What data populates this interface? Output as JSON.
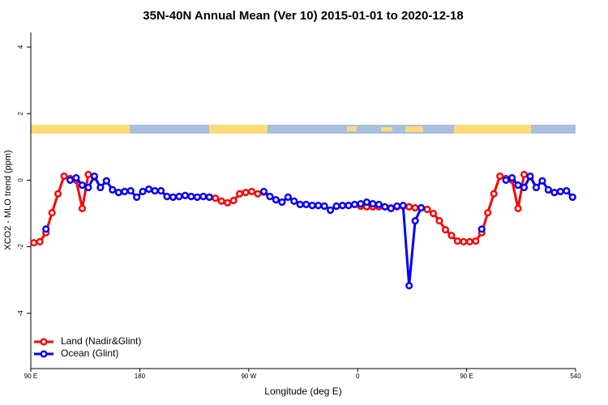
{
  "chart_data": {
    "type": "line",
    "title": "35N-40N Annual Mean (Ver 10)   2015-01-01 to 2020-12-18",
    "xlabel": "Longitude (deg E)",
    "ylabel": "XCO2 - MLO trend (ppm)",
    "x": [
      92.5,
      97.5,
      102.5,
      107.5,
      112.5,
      117.5,
      122.5,
      127.5,
      132.5,
      137.5,
      142.5,
      147.5,
      152.5,
      157.5,
      162.5,
      167.5,
      172.5,
      177.5,
      182.5,
      187.5,
      192.5,
      197.5,
      202.5,
      207.5,
      212.5,
      217.5,
      222.5,
      227.5,
      232.5,
      237.5,
      242.5,
      247.5,
      252.5,
      257.5,
      262.5,
      267.5,
      272.5,
      277.5,
      282.5,
      287.5,
      292.5,
      297.5,
      302.5,
      307.5,
      312.5,
      317.5,
      322.5,
      327.5,
      332.5,
      337.5,
      342.5,
      347.5,
      352.5,
      357.5,
      362.5,
      367.5,
      372.5,
      377.5,
      382.5,
      387.5,
      392.5,
      397.5,
      402.5,
      407.5,
      412.5,
      417.5,
      422.5,
      427.5,
      432.5,
      437.5,
      442.5,
      447.5,
      452.5,
      457.5,
      462.5,
      467.5,
      472.5,
      477.5,
      482.5,
      487.5,
      492.5,
      497.5,
      502.5,
      507.5,
      512.5,
      517.5,
      522.5,
      527.5,
      532.5,
      537.5
    ],
    "series": [
      {
        "name": "Land (Nadir&Glint)",
        "color": "#ff0000",
        "values": [
          -1.88,
          -1.85,
          -1.58,
          -0.98,
          -0.41,
          0.12,
          0.05,
          0.0,
          -0.85,
          0.17,
          0.1,
          -0.22,
          -0.02,
          -0.29,
          -0.37,
          -0.34,
          -0.32,
          -0.51,
          -0.34,
          -0.27,
          -0.32,
          -0.32,
          -0.49,
          -0.51,
          -0.49,
          -0.46,
          -0.49,
          -0.51,
          -0.49,
          -0.51,
          -0.54,
          -0.63,
          -0.68,
          -0.61,
          -0.41,
          -0.37,
          -0.34,
          -0.41,
          -0.36,
          -0.49,
          -0.59,
          -0.66,
          -0.51,
          -0.63,
          -0.73,
          -0.73,
          -0.76,
          -0.76,
          -0.78,
          -0.9,
          -0.78,
          -0.76,
          -0.76,
          -0.73,
          -0.78,
          -0.8,
          -0.8,
          -0.8,
          -0.8,
          -0.83,
          -0.8,
          -0.78,
          -0.8,
          -0.83,
          -0.83,
          -0.88,
          -1.0,
          -1.22,
          -1.49,
          -1.66,
          -1.83,
          -1.85,
          -1.85,
          -1.83,
          -1.58,
          -0.98,
          -0.41,
          0.12,
          0.05,
          0.0,
          -0.85,
          0.17,
          0.1,
          -0.22,
          -0.02,
          -0.29,
          -0.37,
          -0.34,
          -0.32,
          -0.51
        ]
      },
      {
        "name": "Ocean (Glint)",
        "color": "#0000ff",
        "values": [
          null,
          null,
          -1.47,
          null,
          null,
          null,
          0.0,
          0.07,
          -0.15,
          -0.22,
          0.12,
          -0.22,
          -0.02,
          -0.29,
          -0.37,
          -0.34,
          -0.32,
          -0.51,
          -0.34,
          -0.27,
          -0.32,
          -0.32,
          -0.49,
          -0.51,
          -0.49,
          -0.46,
          -0.49,
          -0.51,
          -0.49,
          -0.51,
          null,
          null,
          null,
          null,
          null,
          null,
          null,
          null,
          -0.34,
          -0.49,
          -0.59,
          -0.66,
          -0.51,
          -0.63,
          -0.73,
          -0.73,
          -0.76,
          -0.76,
          -0.78,
          -0.9,
          -0.78,
          -0.76,
          -0.76,
          -0.73,
          -0.71,
          -0.66,
          -0.71,
          -0.73,
          -0.8,
          -0.85,
          -0.78,
          -0.76,
          -3.17,
          -1.22,
          -0.83,
          null,
          null,
          null,
          null,
          null,
          null,
          null,
          null,
          null,
          -1.47,
          null,
          null,
          null,
          0.0,
          0.07,
          -0.15,
          -0.22,
          0.12,
          -0.22,
          -0.02,
          -0.29,
          -0.37,
          -0.34,
          -0.32,
          -0.51
        ]
      }
    ],
    "xlim": [
      90,
      540
    ],
    "ylim": [
      -5.66,
      4.44
    ],
    "xticks": [
      {
        "value": 90,
        "label": "90 E"
      },
      180,
      {
        "value": 270,
        "label": "90 W"
      },
      {
        "value": 360,
        "label": "0"
      },
      {
        "value": 450,
        "label": "90 E"
      },
      540
    ],
    "yticks": [
      -4,
      -2,
      0,
      2,
      4
    ],
    "legend": "bottom-left"
  }
}
